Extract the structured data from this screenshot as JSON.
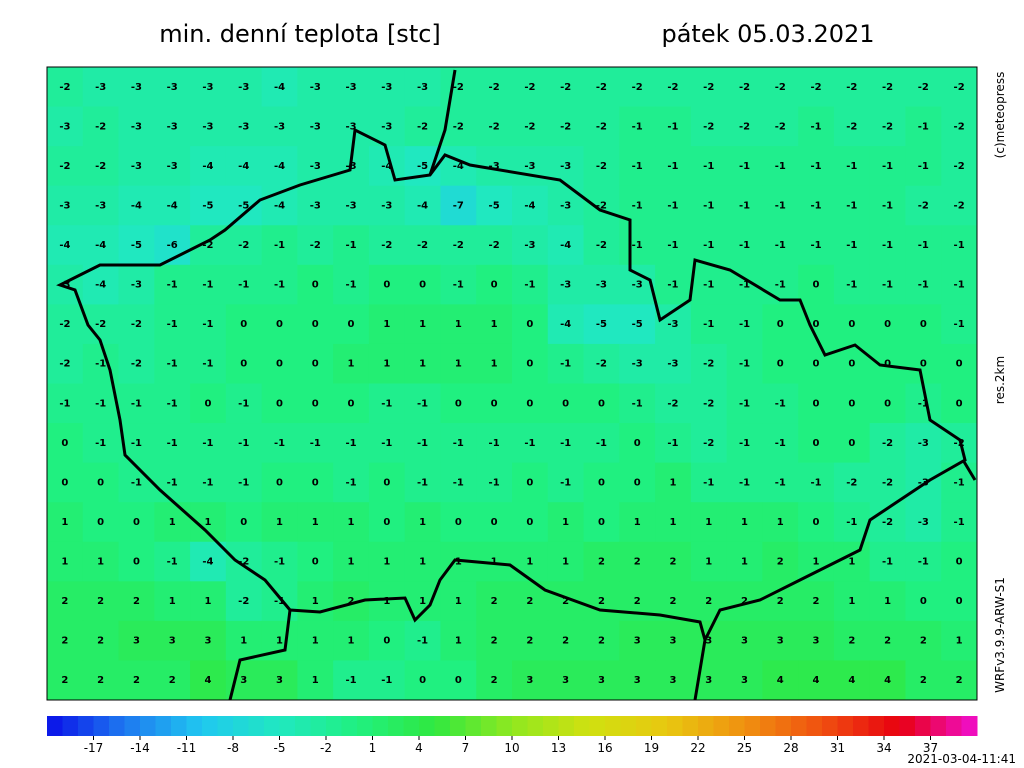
{
  "header": {
    "title": "min. denní teplota [stc]",
    "date": "pátek 05.03.2021"
  },
  "side_labels": {
    "copyright": "(c)meteopress",
    "resolution": "res.2km",
    "model": "WRFv3.9.9-ARW-S1"
  },
  "timestamp": "2021-03-04-11:41",
  "colorbar": {
    "range": [
      -20,
      40
    ],
    "ticks": [
      -17,
      -14,
      -11,
      -8,
      -5,
      -2,
      1,
      4,
      7,
      10,
      13,
      16,
      19,
      22,
      25,
      28,
      31,
      34,
      37
    ],
    "colors": [
      "#0a10e8",
      "#1e78f0",
      "#20c8f0",
      "#20e8c0",
      "#20f080",
      "#30e840",
      "#90e820",
      "#d0e010",
      "#e8c810",
      "#f09010",
      "#f05010",
      "#e80010",
      "#f010d0"
    ]
  },
  "field": {
    "rows": [
      [
        -2,
        -3,
        -3,
        -3,
        -3,
        -3,
        -4,
        -3,
        -3,
        -3,
        -3,
        -2,
        -2,
        -2,
        -2,
        -2,
        -2,
        -2,
        -2,
        -2,
        -2,
        -2,
        -2,
        -2,
        -2,
        -2
      ],
      [
        -3,
        -2,
        -3,
        -3,
        -3,
        -3,
        -3,
        -3,
        -3,
        -3,
        -2,
        -2,
        -2,
        -2,
        -2,
        -2,
        -1,
        -1,
        -2,
        -2,
        -2,
        -1,
        -2,
        -2,
        -1,
        -2
      ],
      [
        -2,
        -2,
        -3,
        -3,
        -4,
        -4,
        -4,
        -3,
        -3,
        -4,
        -5,
        -4,
        -3,
        -3,
        -3,
        -2,
        -1,
        -1,
        -1,
        -1,
        -1,
        -1,
        -1,
        -1,
        -1,
        -2
      ],
      [
        -3,
        -3,
        -4,
        -4,
        -5,
        -5,
        -4,
        -3,
        -3,
        -3,
        -4,
        -7,
        -5,
        -4,
        -3,
        -2,
        -1,
        -1,
        -1,
        -1,
        -1,
        -1,
        -1,
        -1,
        -2,
        -2
      ],
      [
        -4,
        -4,
        -5,
        -6,
        -2,
        -2,
        -1,
        -2,
        -1,
        -2,
        -2,
        -2,
        -2,
        -3,
        -4,
        -2,
        -1,
        -1,
        -1,
        -1,
        -1,
        -1,
        -1,
        -1,
        -1,
        -1
      ],
      [
        -3,
        -4,
        -3,
        -1,
        -1,
        -1,
        -1,
        0,
        -1,
        0,
        0,
        -1,
        0,
        -1,
        -3,
        -3,
        -3,
        -1,
        -1,
        -1,
        -1,
        0,
        -1,
        -1,
        -1,
        -1
      ],
      [
        -2,
        -2,
        -2,
        -1,
        -1,
        0,
        0,
        0,
        0,
        1,
        1,
        1,
        1,
        0,
        -4,
        -5,
        -5,
        -3,
        -1,
        -1,
        0,
        0,
        0,
        0,
        0,
        -1
      ],
      [
        -2,
        -1,
        -2,
        -1,
        -1,
        0,
        0,
        0,
        1,
        1,
        1,
        1,
        1,
        0,
        -1,
        -2,
        -3,
        -3,
        -2,
        -1,
        0,
        0,
        0,
        0,
        0,
        0
      ],
      [
        -1,
        -1,
        -1,
        -1,
        0,
        -1,
        0,
        0,
        0,
        -1,
        -1,
        0,
        0,
        0,
        0,
        0,
        -1,
        -2,
        -2,
        -1,
        -1,
        0,
        0,
        0,
        -1,
        0
      ],
      [
        0,
        -1,
        -1,
        -1,
        -1,
        -1,
        -1,
        -1,
        -1,
        -1,
        -1,
        -1,
        -1,
        -1,
        -1,
        -1,
        0,
        -1,
        -2,
        -1,
        -1,
        0,
        0,
        -2,
        -3,
        -2
      ],
      [
        0,
        0,
        -1,
        -1,
        -1,
        -1,
        0,
        0,
        -1,
        0,
        -1,
        -1,
        -1,
        0,
        -1,
        0,
        0,
        1,
        -1,
        -1,
        -1,
        -1,
        -2,
        -2,
        -3,
        -1
      ],
      [
        1,
        0,
        0,
        1,
        1,
        0,
        1,
        1,
        1,
        0,
        1,
        0,
        0,
        0,
        1,
        0,
        1,
        1,
        1,
        1,
        1,
        0,
        -1,
        -2,
        -3,
        -1
      ],
      [
        1,
        1,
        0,
        -1,
        -4,
        -2,
        -1,
        0,
        1,
        1,
        1,
        1,
        1,
        1,
        1,
        2,
        2,
        2,
        1,
        1,
        2,
        1,
        1,
        -1,
        -1,
        0
      ],
      [
        2,
        2,
        2,
        1,
        1,
        -2,
        -1,
        1,
        2,
        1,
        1,
        1,
        2,
        2,
        2,
        2,
        2,
        2,
        2,
        2,
        2,
        2,
        1,
        1,
        0,
        0
      ],
      [
        2,
        2,
        3,
        3,
        3,
        1,
        1,
        1,
        1,
        0,
        -1,
        1,
        2,
        2,
        2,
        2,
        3,
        3,
        3,
        3,
        3,
        3,
        2,
        2,
        2,
        1
      ],
      [
        2,
        2,
        2,
        2,
        4,
        3,
        3,
        1,
        -1,
        -1,
        0,
        0,
        2,
        3,
        3,
        3,
        3,
        3,
        3,
        3,
        4,
        4,
        4,
        4,
        2,
        2
      ]
    ]
  }
}
